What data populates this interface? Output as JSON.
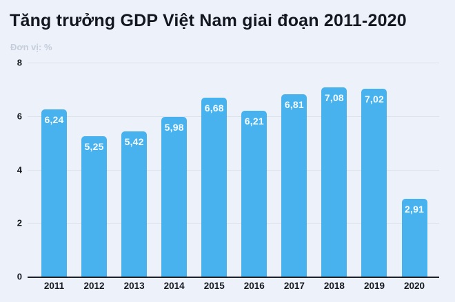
{
  "chart_data": {
    "type": "bar",
    "title": "Tăng trưởng GDP Việt Nam giai đoạn 2011-2020",
    "subtitle": "Đơn vị: %",
    "categories": [
      "2011",
      "2012",
      "2013",
      "2014",
      "2015",
      "2016",
      "2017",
      "2018",
      "2019",
      "2020"
    ],
    "values": [
      6.24,
      5.25,
      5.42,
      5.98,
      6.68,
      6.21,
      6.81,
      7.08,
      7.02,
      2.91
    ],
    "value_labels": [
      "6,24",
      "5,25",
      "5,42",
      "5,98",
      "6,68",
      "6,21",
      "6,81",
      "7,08",
      "7,02",
      "2,91"
    ],
    "xlabel": "",
    "ylabel": "%",
    "ylim": [
      0,
      8
    ],
    "yticks": [
      0,
      2,
      4,
      6,
      8
    ],
    "grid": true,
    "legend": "none",
    "colors": {
      "bar": "#47b2ee",
      "bar_label": "#f4fbff",
      "background": "#edf2fa",
      "gridline": "#dce2ec",
      "axis_line": "#1b202a",
      "title": "#13171f",
      "subtitle": "#c5cdda",
      "tick_label": "#15181e"
    }
  }
}
